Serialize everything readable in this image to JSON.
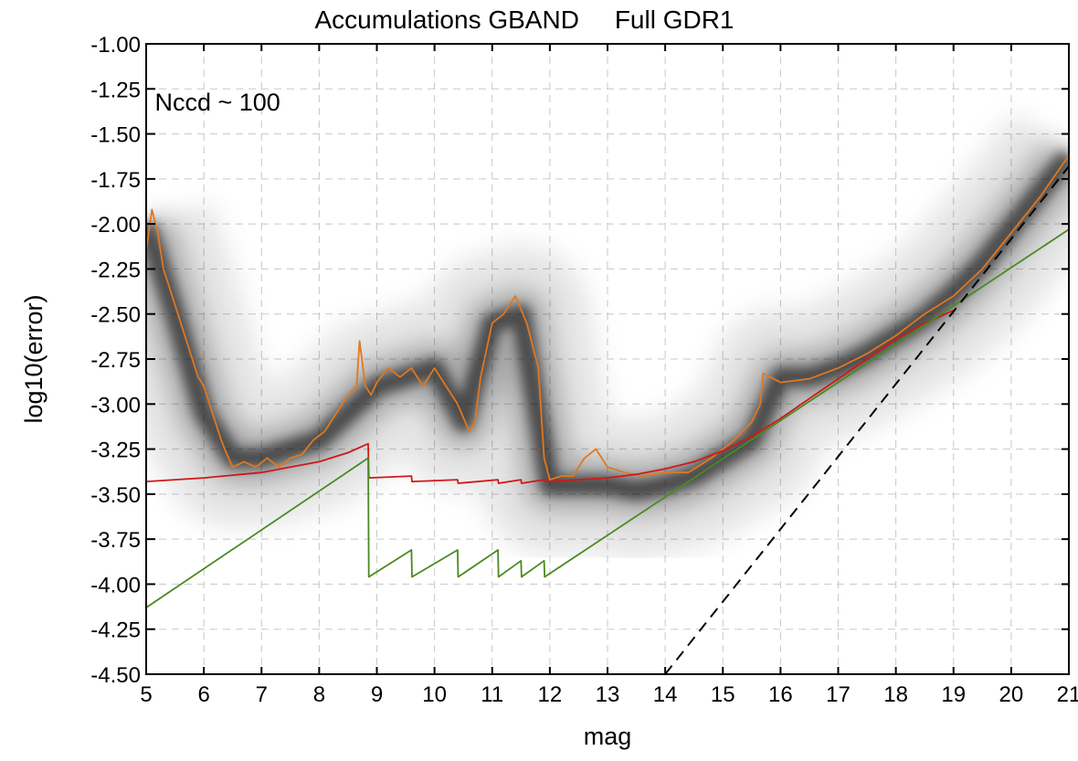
{
  "chart_data": {
    "type": "scatter",
    "title": "Accumulations GBAND     Full GDR1",
    "xlabel": "mag",
    "ylabel": "log10(error)",
    "xlim": [
      5,
      21
    ],
    "ylim": [
      -4.5,
      -1.0
    ],
    "xticks": [
      "5",
      "6",
      "7",
      "8",
      "9",
      "10",
      "11",
      "12",
      "13",
      "14",
      "15",
      "16",
      "17",
      "18",
      "19",
      "20",
      "21"
    ],
    "yticks": [
      "-1.00",
      "-1.25",
      "-1.50",
      "-1.75",
      "-2.00",
      "-2.25",
      "-2.50",
      "-2.75",
      "-3.00",
      "-3.25",
      "-3.50",
      "-3.75",
      "-4.00",
      "-4.25",
      "-4.50"
    ],
    "grid": true,
    "annotations": [
      {
        "text": "Nccd ~ 100",
        "x": 5.15,
        "y": -1.37
      }
    ],
    "density_ridge": {
      "description_color": "#000000",
      "x": [
        5.0,
        5.5,
        6.0,
        6.5,
        7.0,
        7.5,
        8.0,
        8.5,
        9.0,
        9.5,
        10.0,
        10.5,
        11.0,
        11.5,
        12.0,
        12.5,
        13.0,
        13.5,
        14.0,
        14.5,
        15.0,
        15.5,
        16.0,
        16.5,
        17.0,
        17.5,
        18.0,
        18.5,
        19.0,
        19.5,
        20.0,
        20.5,
        21.0
      ],
      "y": [
        -2.0,
        -2.5,
        -3.05,
        -3.3,
        -3.3,
        -3.25,
        -3.2,
        -3.05,
        -2.9,
        -2.85,
        -2.8,
        -3.1,
        -2.55,
        -2.5,
        -3.45,
        -3.45,
        -3.45,
        -3.48,
        -3.45,
        -3.4,
        -3.3,
        -3.2,
        -2.85,
        -2.85,
        -2.8,
        -2.72,
        -2.62,
        -2.52,
        -2.38,
        -2.22,
        -2.02,
        -1.82,
        -1.62
      ]
    },
    "series": [
      {
        "color": "#e07820",
        "x": [
          5.0,
          5.1,
          5.2,
          5.3,
          5.4,
          5.5,
          5.6,
          5.7,
          5.8,
          5.9,
          6.0,
          6.1,
          6.2,
          6.3,
          6.4,
          6.5,
          6.7,
          6.9,
          7.1,
          7.3,
          7.5,
          7.7,
          7.9,
          8.1,
          8.3,
          8.5,
          8.65,
          8.7,
          8.8,
          8.9,
          9.0,
          9.2,
          9.4,
          9.6,
          9.8,
          10.0,
          10.2,
          10.4,
          10.6,
          10.7,
          10.8,
          11.0,
          11.2,
          11.4,
          11.6,
          11.8,
          11.9,
          12.0,
          12.2,
          12.4,
          12.6,
          12.8,
          13.0,
          13.3,
          13.6,
          14.0,
          14.4,
          14.8,
          15.2,
          15.5,
          15.65,
          15.7,
          16.0,
          16.5,
          17.0,
          17.5,
          18.0,
          18.5,
          19.0,
          19.5,
          20.0,
          20.5,
          21.0
        ],
        "y": [
          -2.15,
          -1.92,
          -2.05,
          -2.25,
          -2.35,
          -2.45,
          -2.55,
          -2.65,
          -2.75,
          -2.85,
          -2.9,
          -3.0,
          -3.1,
          -3.2,
          -3.28,
          -3.35,
          -3.32,
          -3.35,
          -3.3,
          -3.35,
          -3.3,
          -3.28,
          -3.2,
          -3.15,
          -3.05,
          -2.95,
          -2.9,
          -2.65,
          -2.9,
          -2.95,
          -2.88,
          -2.8,
          -2.85,
          -2.8,
          -2.9,
          -2.8,
          -2.9,
          -3.0,
          -3.15,
          -3.1,
          -2.85,
          -2.55,
          -2.5,
          -2.4,
          -2.55,
          -2.8,
          -3.3,
          -3.42,
          -3.4,
          -3.4,
          -3.3,
          -3.25,
          -3.35,
          -3.38,
          -3.4,
          -3.38,
          -3.38,
          -3.3,
          -3.2,
          -3.1,
          -3.0,
          -2.83,
          -2.88,
          -2.86,
          -2.8,
          -2.72,
          -2.62,
          -2.5,
          -2.4,
          -2.25,
          -2.05,
          -1.85,
          -1.62
        ]
      },
      {
        "color": "#d01818",
        "x": [
          5.0,
          6.0,
          7.0,
          7.5,
          8.0,
          8.5,
          8.85,
          8.86,
          9.6,
          9.61,
          10.4,
          10.41,
          11.1,
          11.11,
          11.5,
          11.51,
          11.9,
          11.91,
          12.5,
          13.0,
          13.5,
          14.0,
          14.5,
          15.0,
          15.5,
          16.0,
          16.5,
          17.0,
          17.5,
          18.0,
          18.5,
          19.0
        ],
        "y": [
          -3.43,
          -3.41,
          -3.38,
          -3.35,
          -3.32,
          -3.27,
          -3.22,
          -3.41,
          -3.4,
          -3.43,
          -3.42,
          -3.44,
          -3.42,
          -3.44,
          -3.42,
          -3.44,
          -3.42,
          -3.43,
          -3.42,
          -3.41,
          -3.39,
          -3.36,
          -3.32,
          -3.26,
          -3.18,
          -3.08,
          -2.97,
          -2.86,
          -2.75,
          -2.64,
          -2.55,
          -2.48
        ]
      },
      {
        "color": "#4a8a20",
        "x": [
          5.0,
          8.85,
          8.86,
          9.6,
          9.61,
          10.4,
          10.41,
          11.1,
          11.11,
          11.5,
          11.51,
          11.9,
          11.91,
          21.0
        ],
        "y": [
          -4.13,
          -3.3,
          -3.96,
          -3.81,
          -3.96,
          -3.81,
          -3.96,
          -3.81,
          -3.96,
          -3.87,
          -3.96,
          -3.87,
          -3.96,
          -2.03
        ]
      },
      {
        "color": "#000000",
        "dashed": true,
        "x": [
          14.0,
          21.0
        ],
        "y": [
          -4.5,
          -1.68
        ]
      }
    ]
  }
}
